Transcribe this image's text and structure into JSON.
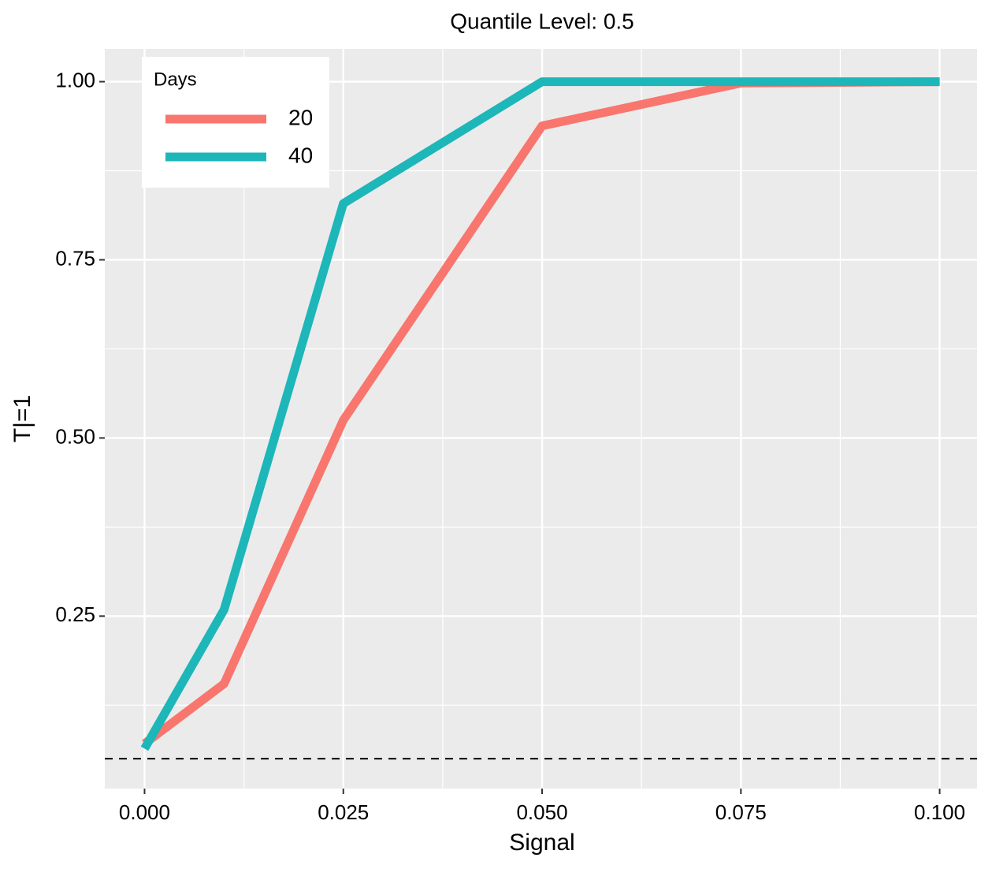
{
  "chart_data": {
    "type": "line",
    "title": "Quantile Level: 0.5",
    "x_label": "Signal",
    "y_label": "T|=1",
    "x": [
      0,
      0.01,
      0.025,
      0.05,
      0.075,
      0.1
    ],
    "series": [
      {
        "name": "20",
        "color": "#F8766D",
        "values": [
          0.071,
          0.155,
          0.525,
          0.938,
          0.998,
          1.0
        ]
      },
      {
        "name": "40",
        "color": "#1DB6B9",
        "values": [
          0.064,
          0.259,
          0.829,
          1.0,
          1.0,
          1.0
        ]
      }
    ],
    "legend_title": "Days",
    "legend_position": "top-left",
    "reference_line": {
      "value": 0.05,
      "style": "dashed"
    },
    "xlim": [
      -0.005,
      0.1047
    ],
    "ylim": [
      0.008,
      1.046
    ],
    "xticks": [
      {
        "value": 0,
        "label": "0.000"
      },
      {
        "value": 0.025,
        "label": "0.025"
      },
      {
        "value": 0.05,
        "label": "0.050"
      },
      {
        "value": 0.075,
        "label": "0.075"
      },
      {
        "value": 0.1,
        "label": "0.100"
      }
    ],
    "yticks": [
      {
        "value": 0.25,
        "label": "0.25"
      },
      {
        "value": 0.5,
        "label": "0.50"
      },
      {
        "value": 0.75,
        "label": "0.75"
      },
      {
        "value": 1.0,
        "label": "1.00"
      }
    ],
    "grid": true
  }
}
